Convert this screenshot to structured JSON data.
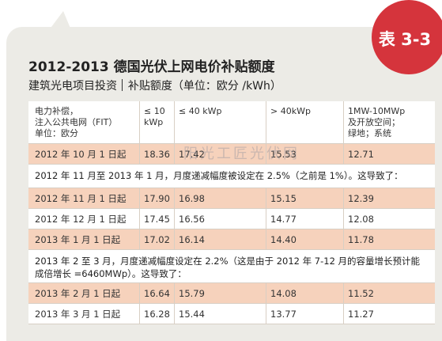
{
  "badge": "表 3-3",
  "title": "2012-2013 德国光伏上网电价补贴额度",
  "subtitle_left": "建筑光电项目投资",
  "subtitle_right": "补贴额度（单位：欧分 /kWh）",
  "watermark": "阳光工匠光伏网",
  "headers": [
    "电力补偿，\n注入公共电网（FIT）\n单位：欧分",
    "≤ 10\nkWp",
    "≤ 40 kWp",
    "> 40kWp",
    "1MW-10MWp\n及开放空间；\n绿地；系统"
  ],
  "rows": [
    {
      "type": "data",
      "date": "2012 年 10 月 1 日起",
      "v1": "18.36",
      "v2": "17.42",
      "v3": "15.53",
      "v4": "12.71"
    },
    {
      "type": "note",
      "text": "2012 年 11 月至 2013 年 1 月，月度递减幅度被设定在 2.5%（之前是 1%）。这导致了："
    },
    {
      "type": "data",
      "date": "2012 年 11 月 1 日起",
      "v1": "17.90",
      "v2": "16.98",
      "v3": "15.15",
      "v4": "12.39"
    },
    {
      "type": "data",
      "date": "2012 年 12 月 1 日起",
      "v1": "17.45",
      "v2": "16.56",
      "v3": "14.77",
      "v4": "12.08"
    },
    {
      "type": "data",
      "date": "2013 年 1 月 1 日起",
      "v1": "17.02",
      "v2": "16.14",
      "v3": "14.40",
      "v4": "11.78"
    },
    {
      "type": "note",
      "text": "2013 年 2 至 3 月，月度递减幅度设定在 2.2%（这是由于 2012 年 7-12 月的容量增长预计能成倍增长 =6460MWp）。这导致了："
    },
    {
      "type": "data",
      "date": "2013 年 2 月 1 日起",
      "v1": "16.64",
      "v2": "15.79",
      "v3": "14.08",
      "v4": "11.52"
    },
    {
      "type": "data",
      "date": "2013 年 3 月 1 日起",
      "v1": "16.28",
      "v2": "15.44",
      "v3": "13.77",
      "v4": "11.27"
    }
  ]
}
